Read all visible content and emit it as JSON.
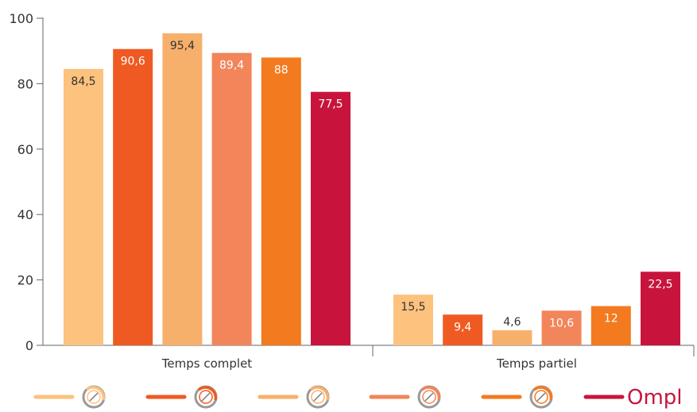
{
  "chart_data": {
    "type": "bar",
    "categories": [
      "Temps complet",
      "Temps partiel"
    ],
    "series": [
      {
        "icon": "architect-icon",
        "color": "#fcc27e",
        "label_color": "#333333",
        "values": [
          84.5,
          15.5
        ],
        "labels": [
          "84,5",
          "15,5"
        ]
      },
      {
        "icon": "house-icon",
        "color": "#ef5a22",
        "label_color": "#ffffff",
        "values": [
          90.6,
          9.4
        ],
        "labels": [
          "90,6",
          "9,4"
        ]
      },
      {
        "icon": "vehicle-inspection-icon",
        "color": "#f7b06b",
        "label_color": "#333333",
        "values": [
          95.4,
          4.6
        ],
        "labels": [
          "95,4",
          "4,6"
        ]
      },
      {
        "icon": "surveyor-icon",
        "color": "#f2855a",
        "label_color": "#ffffff",
        "values": [
          89.4,
          10.6
        ],
        "labels": [
          "89,4",
          "10,6"
        ]
      },
      {
        "icon": "environment-icon",
        "color": "#f37a1f",
        "label_color": "#ffffff",
        "values": [
          88,
          12
        ],
        "labels": [
          "88",
          "12"
        ]
      },
      {
        "icon": "ompl-logo",
        "color": "#c8143c",
        "label_color": "#ffffff",
        "values": [
          77.5,
          22.5
        ],
        "labels": [
          "77,5",
          "22,5"
        ],
        "logo_text": "Ompl"
      }
    ],
    "ylim": [
      0,
      100
    ],
    "yticks": [
      "0",
      "20",
      "40",
      "60",
      "80",
      "100"
    ],
    "grid": false,
    "legend_position": "bottom"
  }
}
